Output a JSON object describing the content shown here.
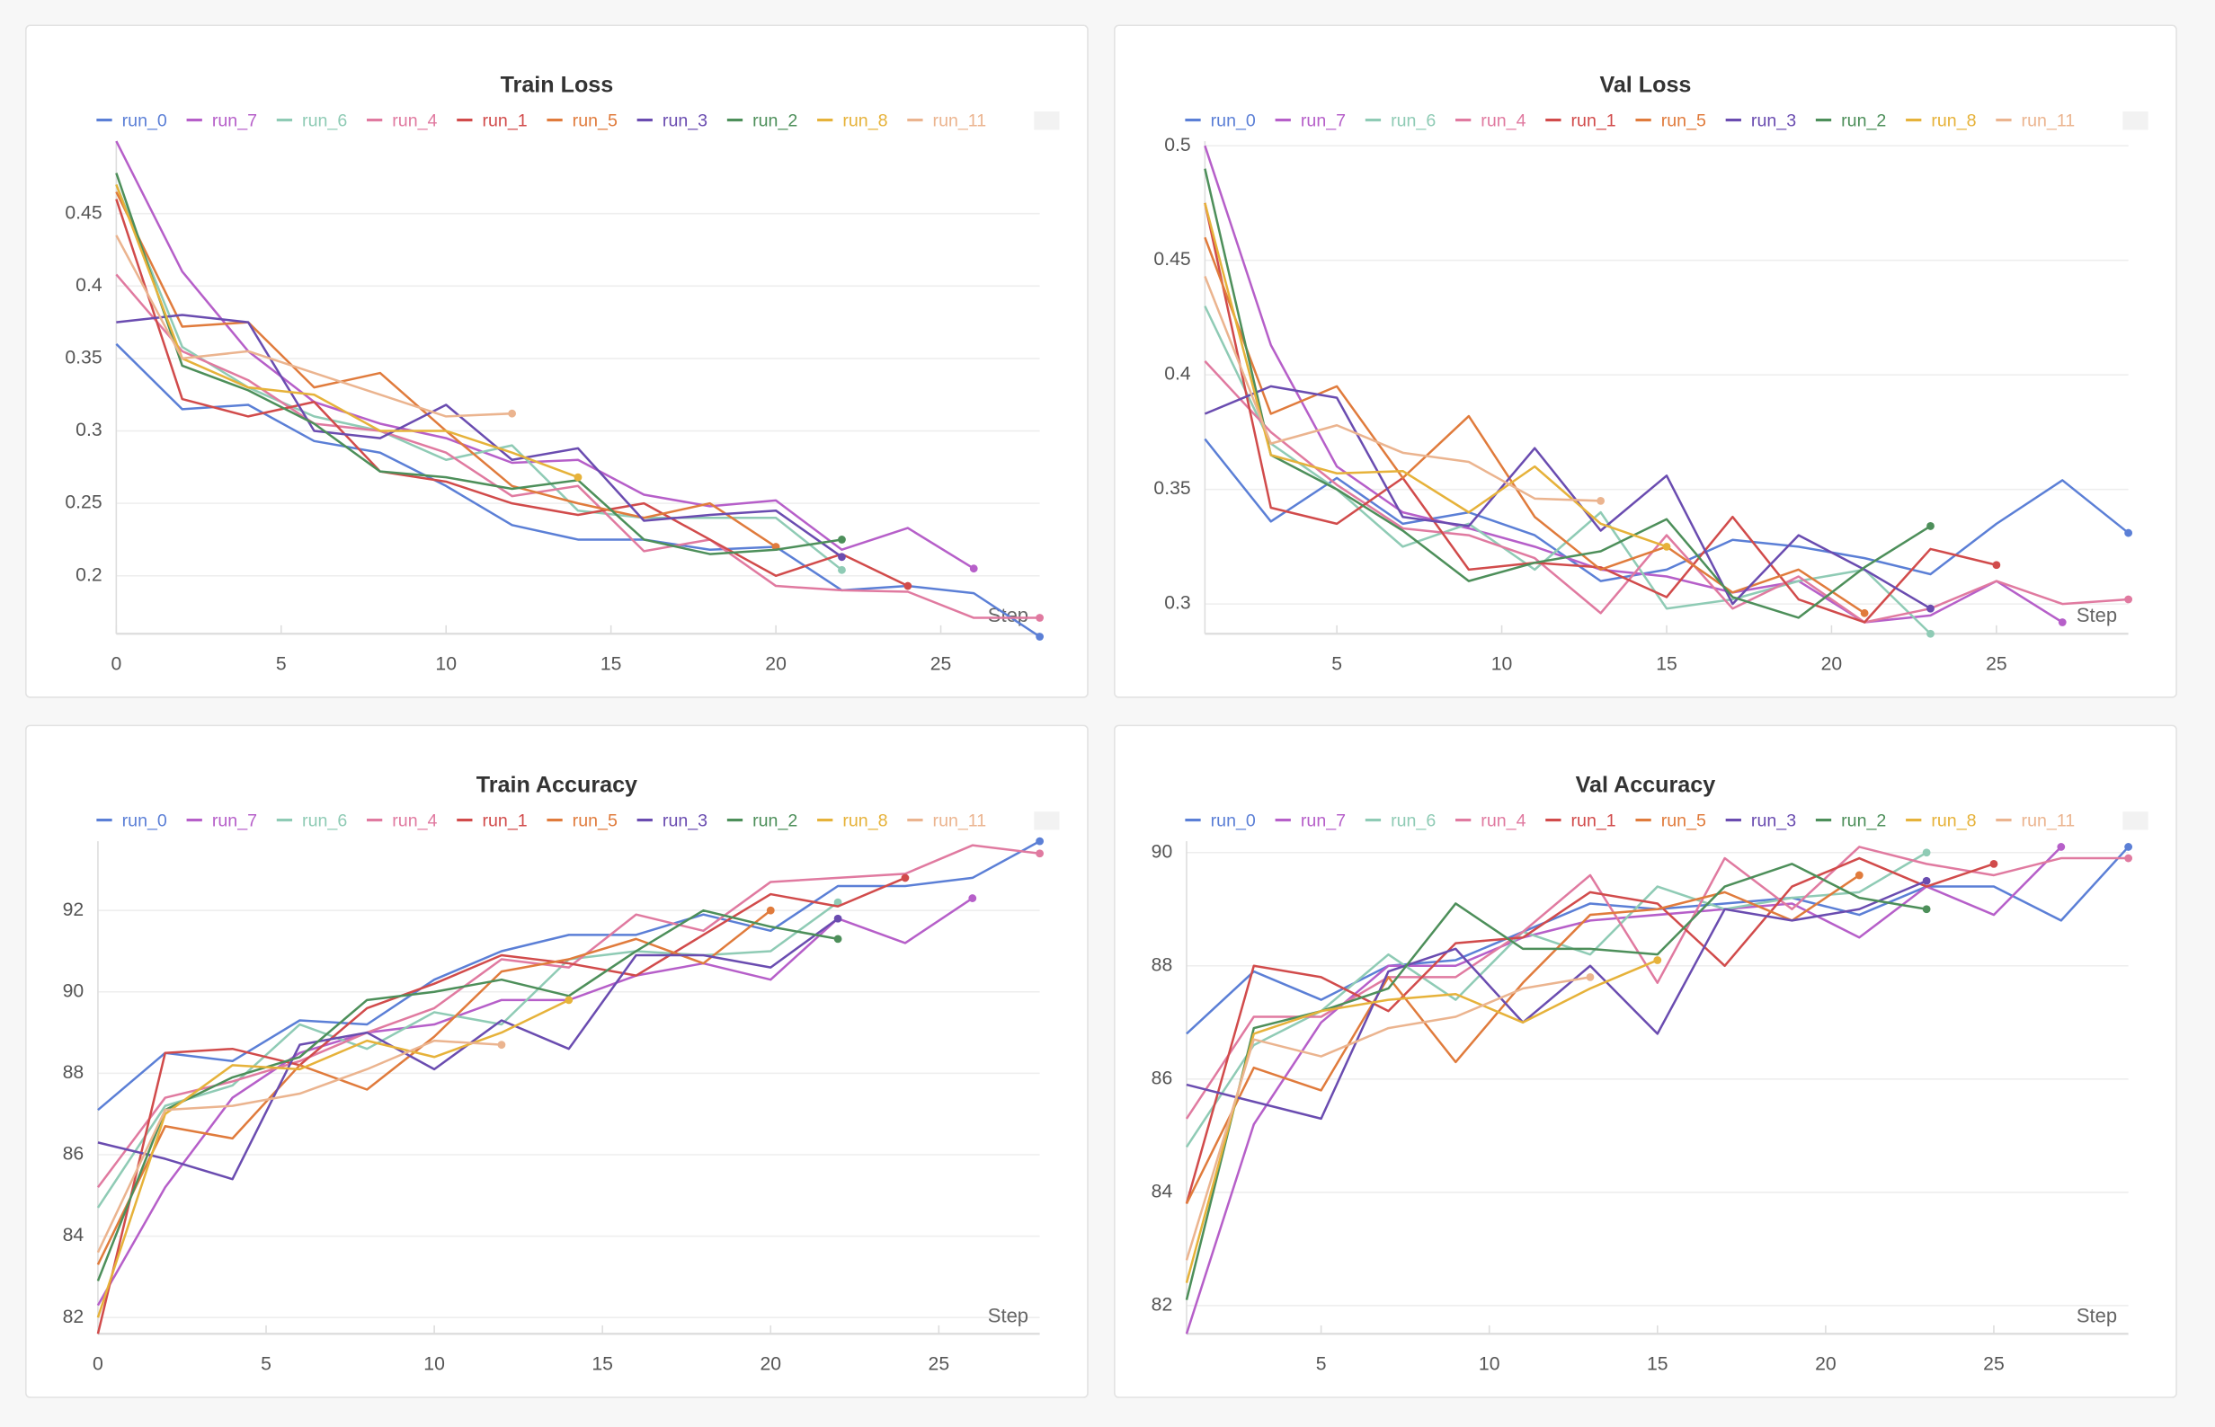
{
  "chart_data": [
    {
      "type": "line",
      "title": "Train Loss",
      "x": [
        0,
        2,
        4,
        6,
        8,
        10,
        12,
        14,
        16,
        18,
        20,
        22,
        24,
        26,
        28
      ],
      "xlim": [
        0,
        28
      ],
      "xticks": [
        0,
        5,
        10,
        15,
        20,
        25
      ],
      "x_label": "Step",
      "ylim": [
        0.16,
        0.5
      ],
      "yticks": [
        0.2,
        0.25,
        0.3,
        0.35,
        0.4,
        0.45
      ],
      "grid": true,
      "series": [
        {
          "name": "run_0",
          "color": "#5b7fd6",
          "values": [
            0.36,
            0.315,
            0.318,
            0.293,
            0.285,
            0.262,
            0.235,
            0.225,
            0.225,
            0.218,
            0.22,
            0.19,
            0.193,
            0.188,
            0.158
          ]
        },
        {
          "name": "run_7",
          "color": "#b65fc9",
          "values": [
            0.5,
            0.41,
            0.355,
            0.32,
            0.305,
            0.295,
            0.278,
            0.28,
            0.256,
            0.248,
            0.252,
            0.218,
            0.233,
            0.205,
            null
          ]
        },
        {
          "name": "run_6",
          "color": "#8fcbb5",
          "values": [
            0.47,
            0.358,
            0.33,
            0.31,
            0.3,
            0.28,
            0.29,
            0.245,
            0.24,
            0.24,
            0.24,
            0.204,
            null,
            null,
            null
          ]
        },
        {
          "name": "run_4",
          "color": "#e07aa0",
          "values": [
            0.408,
            0.355,
            0.335,
            0.305,
            0.3,
            0.285,
            0.255,
            0.262,
            0.217,
            0.225,
            0.193,
            0.19,
            0.189,
            0.171,
            0.171
          ]
        },
        {
          "name": "run_1",
          "color": "#d14b4b",
          "values": [
            0.46,
            0.322,
            0.31,
            0.32,
            0.272,
            0.265,
            0.25,
            0.242,
            0.25,
            0.225,
            0.2,
            0.215,
            0.193,
            null,
            null
          ]
        },
        {
          "name": "run_5",
          "color": "#e07b3c",
          "values": [
            0.465,
            0.372,
            0.375,
            0.33,
            0.34,
            0.3,
            0.262,
            0.25,
            0.24,
            0.25,
            0.22,
            null,
            null,
            null,
            null
          ]
        },
        {
          "name": "run_3",
          "color": "#6a4cb0",
          "values": [
            0.375,
            0.38,
            0.375,
            0.3,
            0.295,
            0.318,
            0.28,
            0.288,
            0.238,
            0.242,
            0.245,
            0.213,
            null,
            null,
            null
          ]
        },
        {
          "name": "run_2",
          "color": "#4d8f5a",
          "values": [
            0.478,
            0.345,
            0.328,
            0.305,
            0.272,
            0.268,
            0.26,
            0.266,
            0.225,
            0.215,
            0.218,
            0.225,
            null,
            null,
            null
          ]
        },
        {
          "name": "run_8",
          "color": "#e6b23a",
          "values": [
            0.47,
            0.35,
            0.33,
            0.325,
            0.3,
            0.3,
            0.285,
            0.268,
            null,
            null,
            null,
            null,
            null,
            null,
            null
          ]
        },
        {
          "name": "run_11",
          "color": "#ebb48f",
          "values": [
            0.435,
            0.35,
            0.355,
            0.34,
            0.325,
            0.31,
            0.312,
            null,
            null,
            null,
            null,
            null,
            null,
            null,
            null
          ]
        }
      ]
    },
    {
      "type": "line",
      "title": "Val Loss",
      "x": [
        1,
        3,
        5,
        7,
        9,
        11,
        13,
        15,
        17,
        19,
        21,
        23,
        25,
        27,
        29
      ],
      "xlim": [
        1,
        29
      ],
      "xticks": [
        5,
        10,
        15,
        20,
        25
      ],
      "x_label": "Step",
      "ylim": [
        0.287,
        0.502
      ],
      "yticks": [
        0.3,
        0.35,
        0.4,
        0.45,
        0.5
      ],
      "grid": true,
      "series": [
        {
          "name": "run_0",
          "color": "#5b7fd6",
          "values": [
            0.372,
            0.336,
            0.355,
            0.335,
            0.34,
            0.33,
            0.31,
            0.315,
            0.328,
            0.325,
            0.32,
            0.313,
            0.335,
            0.354,
            0.331
          ]
        },
        {
          "name": "run_7",
          "color": "#b65fc9",
          "values": [
            0.5,
            0.413,
            0.36,
            0.34,
            0.333,
            0.325,
            0.315,
            0.312,
            0.305,
            0.31,
            0.292,
            0.295,
            0.31,
            0.292,
            null
          ]
        },
        {
          "name": "run_6",
          "color": "#8fcbb5",
          "values": [
            0.43,
            0.37,
            0.35,
            0.325,
            0.335,
            0.315,
            0.34,
            0.298,
            0.302,
            0.31,
            0.315,
            0.287,
            null,
            null,
            null
          ]
        },
        {
          "name": "run_4",
          "color": "#e07aa0",
          "values": [
            0.406,
            0.375,
            0.352,
            0.333,
            0.33,
            0.32,
            0.296,
            0.33,
            0.298,
            0.312,
            0.292,
            0.298,
            0.31,
            0.3,
            0.302
          ]
        },
        {
          "name": "run_1",
          "color": "#d14b4b",
          "values": [
            0.475,
            0.342,
            0.335,
            0.355,
            0.315,
            0.318,
            0.316,
            0.303,
            0.338,
            0.302,
            0.292,
            0.324,
            0.317,
            null,
            null
          ]
        },
        {
          "name": "run_5",
          "color": "#e07b3c",
          "values": [
            0.46,
            0.383,
            0.395,
            0.355,
            0.382,
            0.338,
            0.315,
            0.325,
            0.305,
            0.315,
            0.296,
            null,
            null,
            null,
            null
          ]
        },
        {
          "name": "run_3",
          "color": "#6a4cb0",
          "values": [
            0.383,
            0.395,
            0.39,
            0.338,
            0.334,
            0.368,
            0.332,
            0.356,
            0.3,
            0.33,
            0.315,
            0.298,
            null,
            null,
            null
          ]
        },
        {
          "name": "run_2",
          "color": "#4d8f5a",
          "values": [
            0.49,
            0.365,
            0.35,
            0.332,
            0.31,
            0.318,
            0.323,
            0.337,
            0.303,
            0.294,
            0.316,
            0.334,
            null,
            null,
            null
          ]
        },
        {
          "name": "run_8",
          "color": "#e6b23a",
          "values": [
            0.475,
            0.365,
            0.357,
            0.358,
            0.34,
            0.36,
            0.335,
            0.325,
            null,
            null,
            null,
            null,
            null,
            null,
            null
          ]
        },
        {
          "name": "run_11",
          "color": "#ebb48f",
          "values": [
            0.443,
            0.37,
            0.378,
            0.366,
            0.362,
            0.346,
            0.345,
            null,
            null,
            null,
            null,
            null,
            null,
            null,
            null
          ]
        }
      ]
    },
    {
      "type": "line",
      "title": "Train Accuracy",
      "x": [
        0,
        2,
        4,
        6,
        8,
        10,
        12,
        14,
        16,
        18,
        20,
        22,
        24,
        26,
        28
      ],
      "xlim": [
        0,
        28
      ],
      "xticks": [
        0,
        5,
        10,
        15,
        20,
        25
      ],
      "x_label": "Step",
      "ylim": [
        81.6,
        93.7
      ],
      "yticks": [
        82,
        84,
        86,
        88,
        90,
        92
      ],
      "grid": true,
      "series": [
        {
          "name": "run_0",
          "color": "#5b7fd6",
          "values": [
            87.1,
            88.5,
            88.3,
            89.3,
            89.2,
            90.3,
            91.0,
            91.4,
            91.4,
            91.9,
            91.5,
            92.6,
            92.6,
            92.8,
            93.7
          ]
        },
        {
          "name": "run_7",
          "color": "#b65fc9",
          "values": [
            82.3,
            85.2,
            87.4,
            88.5,
            89.0,
            89.2,
            89.8,
            89.8,
            90.4,
            90.7,
            90.3,
            91.8,
            91.2,
            92.3,
            null
          ]
        },
        {
          "name": "run_6",
          "color": "#8fcbb5",
          "values": [
            84.7,
            87.2,
            87.7,
            89.2,
            88.6,
            89.5,
            89.2,
            90.8,
            91.0,
            90.9,
            91.0,
            92.2,
            null,
            null,
            null
          ]
        },
        {
          "name": "run_4",
          "color": "#e07aa0",
          "values": [
            85.2,
            87.4,
            87.8,
            88.3,
            89.0,
            89.6,
            90.8,
            90.6,
            91.9,
            91.5,
            92.7,
            92.8,
            92.9,
            93.6,
            93.4
          ]
        },
        {
          "name": "run_1",
          "color": "#d14b4b",
          "values": [
            81.6,
            88.5,
            88.6,
            88.2,
            89.6,
            90.2,
            90.9,
            90.7,
            90.4,
            91.4,
            92.4,
            92.1,
            92.8,
            null,
            null
          ]
        },
        {
          "name": "run_5",
          "color": "#e07b3c",
          "values": [
            83.3,
            86.7,
            86.4,
            88.2,
            87.6,
            88.9,
            90.5,
            90.8,
            91.3,
            90.7,
            92.0,
            null,
            null,
            null,
            null
          ]
        },
        {
          "name": "run_3",
          "color": "#6a4cb0",
          "values": [
            86.3,
            85.9,
            85.4,
            88.7,
            89.0,
            88.1,
            89.3,
            88.6,
            90.9,
            90.9,
            90.6,
            91.8,
            null,
            null,
            null
          ]
        },
        {
          "name": "run_2",
          "color": "#4d8f5a",
          "values": [
            82.9,
            87.1,
            87.9,
            88.4,
            89.8,
            90.0,
            90.3,
            89.9,
            91.0,
            92.0,
            91.6,
            91.3,
            null,
            null,
            null
          ]
        },
        {
          "name": "run_8",
          "color": "#e6b23a",
          "values": [
            82.0,
            87.0,
            88.2,
            88.1,
            88.8,
            88.4,
            89.0,
            89.8,
            null,
            null,
            null,
            null,
            null,
            null,
            null
          ]
        },
        {
          "name": "run_11",
          "color": "#ebb48f",
          "values": [
            83.6,
            87.1,
            87.2,
            87.5,
            88.1,
            88.8,
            88.7,
            null,
            null,
            null,
            null,
            null,
            null,
            null,
            null
          ]
        }
      ]
    },
    {
      "type": "line",
      "title": "Val Accuracy",
      "x": [
        1,
        3,
        5,
        7,
        9,
        11,
        13,
        15,
        17,
        19,
        21,
        23,
        25,
        27,
        29
      ],
      "xlim": [
        1,
        29
      ],
      "xticks": [
        5,
        10,
        15,
        20,
        25
      ],
      "x_label": "Step",
      "ylim": [
        81.5,
        90.2
      ],
      "yticks": [
        82,
        84,
        86,
        88,
        90
      ],
      "grid": true,
      "series": [
        {
          "name": "run_0",
          "color": "#5b7fd6",
          "values": [
            86.8,
            87.9,
            87.4,
            88.0,
            88.1,
            88.6,
            89.1,
            89.0,
            89.1,
            89.2,
            88.9,
            89.4,
            89.4,
            88.8,
            90.1
          ]
        },
        {
          "name": "run_7",
          "color": "#b65fc9",
          "values": [
            81.5,
            85.2,
            87.0,
            88.0,
            88.0,
            88.5,
            88.8,
            88.9,
            89.0,
            89.1,
            88.5,
            89.4,
            88.9,
            90.1,
            null
          ]
        },
        {
          "name": "run_6",
          "color": "#8fcbb5",
          "values": [
            84.8,
            86.6,
            87.2,
            88.2,
            87.4,
            88.6,
            88.2,
            89.4,
            89.0,
            89.2,
            89.3,
            90.0,
            null,
            null,
            null
          ]
        },
        {
          "name": "run_4",
          "color": "#e07aa0",
          "values": [
            85.3,
            87.1,
            87.1,
            87.8,
            87.8,
            88.6,
            89.6,
            87.7,
            89.9,
            89.0,
            90.1,
            89.8,
            89.6,
            89.9,
            89.9
          ]
        },
        {
          "name": "run_1",
          "color": "#d14b4b",
          "values": [
            83.8,
            88.0,
            87.8,
            87.2,
            88.4,
            88.5,
            89.3,
            89.1,
            88.0,
            89.4,
            89.9,
            89.4,
            89.8,
            null,
            null
          ]
        },
        {
          "name": "run_5",
          "color": "#e07b3c",
          "values": [
            83.8,
            86.2,
            85.8,
            87.8,
            86.3,
            87.7,
            88.9,
            89.0,
            89.3,
            88.8,
            89.6,
            null,
            null,
            null,
            null
          ]
        },
        {
          "name": "run_3",
          "color": "#6a4cb0",
          "values": [
            85.9,
            85.6,
            85.3,
            87.9,
            88.3,
            87.0,
            88.0,
            86.8,
            89.0,
            88.8,
            89.0,
            89.5,
            null,
            null,
            null
          ]
        },
        {
          "name": "run_2",
          "color": "#4d8f5a",
          "values": [
            82.1,
            86.9,
            87.2,
            87.6,
            89.1,
            88.3,
            88.3,
            88.2,
            89.4,
            89.8,
            89.2,
            89.0,
            null,
            null,
            null
          ]
        },
        {
          "name": "run_8",
          "color": "#e6b23a",
          "values": [
            82.4,
            86.8,
            87.2,
            87.4,
            87.5,
            87.0,
            87.6,
            88.1,
            null,
            null,
            null,
            null,
            null,
            null,
            null
          ]
        },
        {
          "name": "run_11",
          "color": "#ebb48f",
          "values": [
            82.8,
            86.7,
            86.4,
            86.9,
            87.1,
            87.6,
            87.8,
            null,
            null,
            null,
            null,
            null,
            null,
            null,
            null
          ]
        }
      ]
    }
  ]
}
